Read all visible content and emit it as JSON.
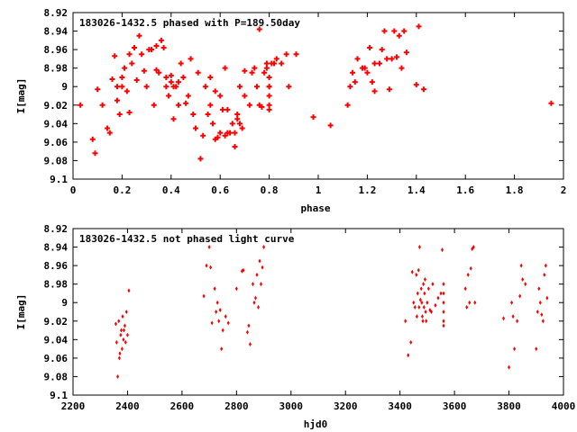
{
  "point_color": "#ff0000",
  "chart_data": [
    {
      "type": "scatter",
      "title": "183026-1432.5 phased with P=189.50day",
      "xlabel": "phase",
      "ylabel": "I[mag]",
      "xlim": [
        0,
        2
      ],
      "ylim": [
        9.1,
        8.92
      ],
      "y_inverted": true,
      "xticks": [
        "0",
        "0.2",
        "0.4",
        "0.6",
        "0.8",
        "1",
        "1.2",
        "1.4",
        "1.6",
        "1.8",
        "2"
      ],
      "yticks": [
        "8.92",
        "8.94",
        "8.96",
        "8.98",
        "9",
        "9.02",
        "9.04",
        "9.06",
        "9.08",
        "9.1"
      ],
      "grid": false,
      "marker": "cross",
      "points": [
        [
          0.03,
          9.02
        ],
        [
          0.08,
          9.057
        ],
        [
          0.09,
          9.072
        ],
        [
          0.1,
          9.003
        ],
        [
          0.12,
          9.02
        ],
        [
          0.14,
          9.045
        ],
        [
          0.15,
          9.05
        ],
        [
          0.16,
          8.992
        ],
        [
          0.17,
          8.967
        ],
        [
          0.18,
          9.0
        ],
        [
          0.18,
          9.015
        ],
        [
          0.19,
          9.03
        ],
        [
          0.2,
          8.99
        ],
        [
          0.2,
          9.0
        ],
        [
          0.21,
          8.98
        ],
        [
          0.22,
          9.005
        ],
        [
          0.23,
          9.028
        ],
        [
          0.23,
          8.965
        ],
        [
          0.24,
          8.975
        ],
        [
          0.25,
          8.958
        ],
        [
          0.26,
          8.993
        ],
        [
          0.27,
          8.945
        ],
        [
          0.28,
          8.965
        ],
        [
          0.29,
          8.983
        ],
        [
          0.3,
          9.0
        ],
        [
          0.31,
          8.96
        ],
        [
          0.32,
          8.96
        ],
        [
          0.33,
          9.02
        ],
        [
          0.34,
          8.982
        ],
        [
          0.34,
          8.956
        ],
        [
          0.35,
          8.985
        ],
        [
          0.36,
          8.95
        ],
        [
          0.37,
          8.958
        ],
        [
          0.38,
          8.99
        ],
        [
          0.38,
          9.0
        ],
        [
          0.39,
          9.01
        ],
        [
          0.4,
          8.995
        ],
        [
          0.4,
          8.988
        ],
        [
          0.41,
          9.0
        ],
        [
          0.41,
          9.035
        ],
        [
          0.42,
          9.0
        ],
        [
          0.43,
          9.02
        ],
        [
          0.43,
          8.995
        ],
        [
          0.44,
          8.975
        ],
        [
          0.45,
          8.99
        ],
        [
          0.46,
          9.018
        ],
        [
          0.47,
          9.01
        ],
        [
          0.48,
          8.97
        ],
        [
          0.49,
          9.03
        ],
        [
          0.5,
          9.045
        ],
        [
          0.51,
          8.985
        ],
        [
          0.52,
          9.078
        ],
        [
          0.53,
          9.053
        ],
        [
          0.54,
          9.0
        ],
        [
          0.55,
          9.03
        ],
        [
          0.56,
          9.02
        ],
        [
          0.56,
          8.99
        ],
        [
          0.57,
          9.04
        ],
        [
          0.58,
          9.057
        ],
        [
          0.58,
          9.005
        ],
        [
          0.59,
          9.055
        ],
        [
          0.6,
          9.05
        ],
        [
          0.6,
          9.01
        ],
        [
          0.61,
          9.025
        ],
        [
          0.62,
          8.98
        ],
        [
          0.62,
          9.053
        ],
        [
          0.63,
          9.025
        ],
        [
          0.63,
          9.05
        ],
        [
          0.64,
          9.05
        ],
        [
          0.65,
          9.04
        ],
        [
          0.66,
          9.05
        ],
        [
          0.66,
          9.065
        ],
        [
          0.67,
          9.03
        ],
        [
          0.67,
          9.035
        ],
        [
          0.68,
          9.04
        ],
        [
          0.68,
          9.0
        ],
        [
          0.69,
          9.045
        ],
        [
          0.7,
          8.983
        ],
        [
          0.7,
          9.01
        ],
        [
          0.72,
          9.02
        ],
        [
          0.73,
          8.985
        ],
        [
          0.74,
          8.98
        ],
        [
          0.75,
          9.0
        ],
        [
          0.76,
          9.02
        ],
        [
          0.76,
          8.938
        ],
        [
          0.77,
          9.022
        ],
        [
          0.78,
          8.985
        ],
        [
          0.79,
          8.98
        ],
        [
          0.79,
          8.975
        ],
        [
          0.8,
          8.99
        ],
        [
          0.8,
          9.0
        ],
        [
          0.8,
          9.01
        ],
        [
          0.8,
          9.02
        ],
        [
          0.8,
          9.025
        ],
        [
          0.8,
          9.0
        ],
        [
          0.81,
          8.975
        ],
        [
          0.82,
          8.975
        ],
        [
          0.83,
          8.97
        ],
        [
          0.85,
          8.975
        ],
        [
          0.87,
          8.965
        ],
        [
          0.88,
          9.0
        ],
        [
          0.91,
          8.965
        ],
        [
          0.98,
          9.033
        ],
        [
          1.05,
          9.042
        ],
        [
          1.12,
          9.02
        ],
        [
          1.13,
          9.0
        ],
        [
          1.14,
          8.985
        ],
        [
          1.15,
          8.995
        ],
        [
          1.16,
          8.97
        ],
        [
          1.18,
          8.98
        ],
        [
          1.19,
          8.98
        ],
        [
          1.2,
          8.985
        ],
        [
          1.21,
          8.958
        ],
        [
          1.22,
          8.995
        ],
        [
          1.23,
          8.975
        ],
        [
          1.23,
          9.005
        ],
        [
          1.25,
          8.975
        ],
        [
          1.26,
          8.96
        ],
        [
          1.27,
          8.94
        ],
        [
          1.28,
          8.97
        ],
        [
          1.29,
          9.003
        ],
        [
          1.3,
          8.97
        ],
        [
          1.31,
          8.94
        ],
        [
          1.32,
          8.968
        ],
        [
          1.33,
          8.945
        ],
        [
          1.34,
          8.98
        ],
        [
          1.35,
          8.94
        ],
        [
          1.36,
          8.963
        ],
        [
          1.4,
          8.998
        ],
        [
          1.41,
          8.935
        ],
        [
          1.43,
          9.003
        ],
        [
          1.95,
          9.018
        ]
      ]
    },
    {
      "type": "scatter",
      "title": "183026-1432.5 not phased light curve",
      "xlabel": "hjd0",
      "ylabel": "I[mag]",
      "xlim": [
        2200,
        4000
      ],
      "ylim": [
        9.1,
        8.92
      ],
      "y_inverted": true,
      "xticks": [
        "2200",
        "2400",
        "2600",
        "2800",
        "3000",
        "3200",
        "3400",
        "3600",
        "3800",
        "4000"
      ],
      "yticks": [
        "8.92",
        "8.94",
        "8.96",
        "8.98",
        "9",
        "9.02",
        "9.04",
        "9.06",
        "9.08",
        "9.1"
      ],
      "grid": false,
      "marker": "diamond",
      "points": [
        [
          2357,
          9.023
        ],
        [
          2360,
          9.043
        ],
        [
          2364,
          9.08
        ],
        [
          2368,
          9.02
        ],
        [
          2370,
          9.06
        ],
        [
          2372,
          9.055
        ],
        [
          2375,
          9.035
        ],
        [
          2377,
          9.03
        ],
        [
          2380,
          9.05
        ],
        [
          2382,
          9.015
        ],
        [
          2385,
          9.04
        ],
        [
          2387,
          9.03
        ],
        [
          2390,
          9.025
        ],
        [
          2393,
          9.043
        ],
        [
          2396,
          9.01
        ],
        [
          2400,
          9.035
        ],
        [
          2405,
          8.987
        ],
        [
          2680,
          8.993
        ],
        [
          2690,
          8.96
        ],
        [
          2700,
          8.94
        ],
        [
          2705,
          8.962
        ],
        [
          2710,
          9.022
        ],
        [
          2720,
          8.985
        ],
        [
          2725,
          9.01
        ],
        [
          2730,
          9.0
        ],
        [
          2735,
          9.02
        ],
        [
          2740,
          9.008
        ],
        [
          2745,
          9.05
        ],
        [
          2750,
          9.03
        ],
        [
          2760,
          9.015
        ],
        [
          2770,
          9.022
        ],
        [
          2800,
          8.985
        ],
        [
          2820,
          8.966
        ],
        [
          2825,
          8.965
        ],
        [
          2840,
          9.032
        ],
        [
          2845,
          9.025
        ],
        [
          2850,
          9.045
        ],
        [
          2860,
          8.98
        ],
        [
          2865,
          9.0
        ],
        [
          2870,
          8.995
        ],
        [
          2875,
          8.97
        ],
        [
          2880,
          9.005
        ],
        [
          2885,
          8.955
        ],
        [
          2890,
          8.98
        ],
        [
          2895,
          8.962
        ],
        [
          2900,
          8.94
        ],
        [
          3420,
          9.02
        ],
        [
          3430,
          9.057
        ],
        [
          3440,
          9.043
        ],
        [
          3445,
          8.967
        ],
        [
          3450,
          9.0
        ],
        [
          3455,
          9.005
        ],
        [
          3460,
          8.97
        ],
        [
          3462,
          9.015
        ],
        [
          3465,
          8.99
        ],
        [
          3468,
          8.965
        ],
        [
          3470,
          9.005
        ],
        [
          3472,
          8.94
        ],
        [
          3475,
          8.997
        ],
        [
          3478,
          8.985
        ],
        [
          3480,
          9.0
        ],
        [
          3482,
          9.015
        ],
        [
          3484,
          9.02
        ],
        [
          3486,
          8.98
        ],
        [
          3488,
          9.005
        ],
        [
          3490,
          8.99
        ],
        [
          3492,
          8.975
        ],
        [
          3494,
          9.01
        ],
        [
          3496,
          9.02
        ],
        [
          3500,
          9.0
        ],
        [
          3505,
          8.985
        ],
        [
          3510,
          9.008
        ],
        [
          3515,
          9.01
        ],
        [
          3520,
          8.98
        ],
        [
          3530,
          9.003
        ],
        [
          3540,
          8.995
        ],
        [
          3550,
          8.99
        ],
        [
          3555,
          8.943
        ],
        [
          3560,
          8.98
        ],
        [
          3560,
          8.99
        ],
        [
          3560,
          9.0
        ],
        [
          3560,
          9.01
        ],
        [
          3560,
          9.02
        ],
        [
          3560,
          9.025
        ],
        [
          3640,
          8.985
        ],
        [
          3645,
          9.005
        ],
        [
          3650,
          8.97
        ],
        [
          3655,
          9.0
        ],
        [
          3660,
          8.963
        ],
        [
          3665,
          8.942
        ],
        [
          3670,
          8.94
        ],
        [
          3675,
          9.0
        ],
        [
          3780,
          9.017
        ],
        [
          3800,
          9.07
        ],
        [
          3810,
          9.0
        ],
        [
          3815,
          9.015
        ],
        [
          3820,
          9.05
        ],
        [
          3830,
          9.02
        ],
        [
          3840,
          8.993
        ],
        [
          3845,
          8.96
        ],
        [
          3850,
          8.975
        ],
        [
          3860,
          8.98
        ],
        [
          3900,
          9.05
        ],
        [
          3905,
          9.01
        ],
        [
          3910,
          8.985
        ],
        [
          3915,
          9.0
        ],
        [
          3920,
          9.013
        ],
        [
          3925,
          9.02
        ],
        [
          3930,
          8.97
        ],
        [
          3935,
          8.96
        ],
        [
          3940,
          8.995
        ]
      ]
    }
  ]
}
